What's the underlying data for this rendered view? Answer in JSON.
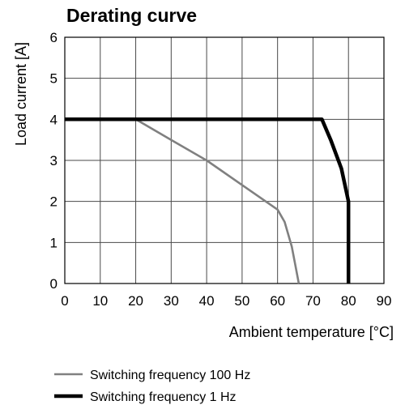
{
  "chart_data": {
    "type": "line",
    "title": "Derating curve",
    "xlabel": "Ambient temperature [°C]",
    "ylabel": "Load current [A]",
    "xlim": [
      0,
      90
    ],
    "ylim": [
      0,
      6
    ],
    "xticks": [
      0,
      10,
      20,
      30,
      40,
      50,
      60,
      70,
      80,
      90
    ],
    "yticks": [
      0,
      1,
      2,
      3,
      4,
      5,
      6
    ],
    "grid": true,
    "legend_position": "bottom",
    "series": [
      {
        "name": "Switching frequency 100 Hz",
        "color": "#808080",
        "x": [
          0,
          20,
          30,
          40,
          50,
          60,
          62,
          64,
          65,
          66
        ],
        "y": [
          4,
          4,
          3.5,
          3,
          2.4,
          1.8,
          1.5,
          0.9,
          0.45,
          0
        ]
      },
      {
        "name": "Switching frequency 1 Hz",
        "color": "#000000",
        "x": [
          0,
          72.5,
          75,
          78,
          80,
          80
        ],
        "y": [
          4,
          4,
          3.5,
          2.8,
          2,
          0
        ]
      }
    ]
  }
}
